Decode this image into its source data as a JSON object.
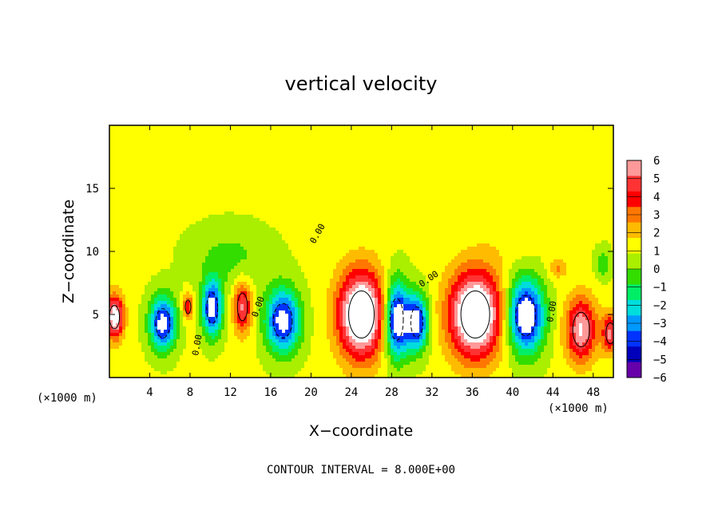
{
  "chart_data": {
    "type": "heatmap",
    "title": "vertical velocity",
    "xlabel": "X−coordinate",
    "ylabel": "Z−coordinate",
    "x_unit_left": "(×1000 m)",
    "x_unit_right": "(×1000 m)",
    "xlim": [
      0,
      50
    ],
    "ylim": [
      0,
      20
    ],
    "x_ticks": [
      4,
      8,
      12,
      16,
      20,
      24,
      28,
      32,
      36,
      40,
      44,
      48
    ],
    "x_tick_labels": [
      "4",
      "8",
      "12",
      "16",
      "20",
      "24",
      "28",
      "32",
      "36",
      "40",
      "44",
      "48"
    ],
    "y_ticks": [
      5,
      10,
      15
    ],
    "y_tick_labels": [
      "5",
      "10",
      "15"
    ],
    "colorbar": {
      "ticks": [
        6,
        5,
        4,
        3,
        2,
        1,
        0,
        -1,
        -2,
        -3,
        -4,
        -5,
        -6
      ],
      "tick_labels": [
        "6",
        "5",
        "4",
        "3",
        "2",
        "1",
        "0",
        "−1",
        "−2",
        "−3",
        "−4",
        "−5",
        "−6"
      ],
      "colors": [
        "#ff9999",
        "#ff3333",
        "#ff0000",
        "#ff7700",
        "#ffbb00",
        "#ffff00",
        "#aaee00",
        "#33dd00",
        "#00ee66",
        "#00dddd",
        "#0099ff",
        "#0033ff",
        "#0000bb",
        "#6600aa"
      ]
    },
    "contour_label": "0.00",
    "contour_interval_text": "CONTOUR INTERVAL = 8.000E+00",
    "cells": [
      {
        "x": 0.5,
        "z": 4.8,
        "w": 7,
        "sx": 0.9,
        "sz": 1.7
      },
      {
        "x": 5.3,
        "z": 4.3,
        "w": -7,
        "sx": 1.3,
        "sz": 2.1
      },
      {
        "x": 7.8,
        "z": 5.6,
        "w": 4,
        "sx": 0.5,
        "sz": 1.0
      },
      {
        "x": 10.2,
        "z": 5.5,
        "w": -7,
        "sx": 1.0,
        "sz": 2.2
      },
      {
        "x": 13.2,
        "z": 5.6,
        "w": 5,
        "sx": 0.9,
        "sz": 2.0
      },
      {
        "x": 17.2,
        "z": 4.5,
        "w": -7,
        "sx": 1.7,
        "sz": 2.5
      },
      {
        "x": 25.0,
        "z": 5.0,
        "w": 9,
        "sx": 2.3,
        "sz": 3.4
      },
      {
        "x": 28.5,
        "z": 4.6,
        "w": -8,
        "sx": 1.2,
        "sz": 3.0
      },
      {
        "x": 30.5,
        "z": 4.4,
        "w": -7,
        "sx": 1.1,
        "sz": 2.2
      },
      {
        "x": 36.3,
        "z": 5.0,
        "w": 9,
        "sx": 2.6,
        "sz": 3.4
      },
      {
        "x": 41.3,
        "z": 4.9,
        "w": -8,
        "sx": 1.8,
        "sz": 2.9
      },
      {
        "x": 44.5,
        "z": 8.7,
        "w": 2,
        "sx": 0.9,
        "sz": 0.8
      },
      {
        "x": 46.8,
        "z": 3.8,
        "w": 6,
        "sx": 1.5,
        "sz": 2.5
      },
      {
        "x": 49.7,
        "z": 3.5,
        "w": 5,
        "sx": 0.8,
        "sz": 1.5
      },
      {
        "x": 49.0,
        "z": 9.0,
        "w": -2,
        "sx": 0.8,
        "sz": 1.2
      },
      {
        "x": 12.0,
        "z": 9.5,
        "w": -1.5,
        "sx": 4.0,
        "sz": 2.5
      },
      {
        "x": 30.0,
        "z": 16.0,
        "w": 0.8,
        "sx": 4.0,
        "sz": 2.5
      },
      {
        "x": 40.0,
        "z": 11.0,
        "w": 0.6,
        "sx": 3.0,
        "sz": 2.0
      }
    ]
  }
}
